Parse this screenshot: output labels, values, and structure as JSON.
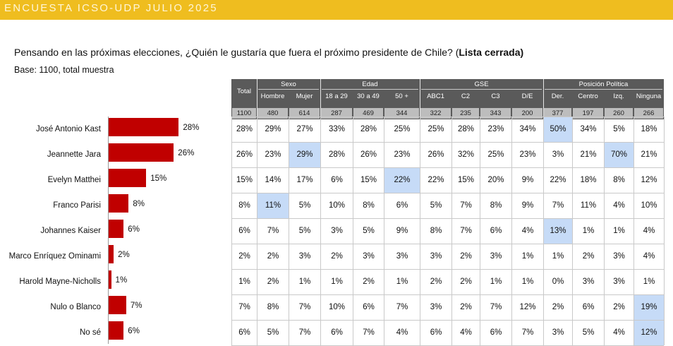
{
  "header": {
    "banner_title": "ENCUESTA ICSO-UDP JULIO 2025"
  },
  "question": {
    "text": "Pensando en las próximas elecciones, ¿Quién le gustaría que fuera el próximo presidente de Chile? (",
    "bold": "Lista cerrada)"
  },
  "base": "Base: 1100, total muestra",
  "colors": {
    "banner": "#efbd1f",
    "bar": "#c00000",
    "highlight": "#c6dbf7",
    "header_bg": "#5a5a5a"
  },
  "table": {
    "total_label": "Total",
    "groups": [
      "Sexo",
      "Edad",
      "GSE",
      "Posición Política"
    ],
    "columns": [
      "Hombre",
      "Mujer",
      "18 a  29",
      "30 a  49",
      "50 +",
      "ABC1",
      "C2",
      "C3",
      "D/E",
      "Der.",
      "Centro",
      "Izq.",
      "Ninguna"
    ],
    "n_values": [
      "1100",
      "480",
      "614",
      "287",
      "469",
      "344",
      "322",
      "235",
      "343",
      "200",
      "377",
      "197",
      "260",
      "266"
    ],
    "rows": [
      {
        "name": "José Antonio Kast",
        "cells": [
          "28%",
          "29%",
          "27%",
          "33%",
          "28%",
          "25%",
          "25%",
          "28%",
          "23%",
          "34%",
          "50%",
          "34%",
          "5%",
          "18%"
        ]
      },
      {
        "name": "Jeannette Jara",
        "cells": [
          "26%",
          "23%",
          "29%",
          "28%",
          "26%",
          "23%",
          "26%",
          "32%",
          "25%",
          "23%",
          "3%",
          "21%",
          "70%",
          "21%"
        ]
      },
      {
        "name": "Evelyn Matthei",
        "cells": [
          "15%",
          "14%",
          "17%",
          "6%",
          "15%",
          "22%",
          "22%",
          "15%",
          "20%",
          "9%",
          "22%",
          "18%",
          "8%",
          "12%"
        ]
      },
      {
        "name": "Franco Parisi",
        "cells": [
          "8%",
          "11%",
          "5%",
          "10%",
          "8%",
          "6%",
          "5%",
          "7%",
          "8%",
          "9%",
          "7%",
          "11%",
          "4%",
          "10%"
        ]
      },
      {
        "name": "Johannes Kaiser",
        "cells": [
          "6%",
          "7%",
          "5%",
          "3%",
          "5%",
          "9%",
          "8%",
          "7%",
          "6%",
          "4%",
          "13%",
          "1%",
          "1%",
          "4%"
        ]
      },
      {
        "name": "Marco Enríquez Ominami",
        "cells": [
          "2%",
          "2%",
          "3%",
          "2%",
          "3%",
          "3%",
          "3%",
          "2%",
          "3%",
          "1%",
          "1%",
          "2%",
          "3%",
          "4%"
        ]
      },
      {
        "name": "Harold Mayne-Nicholls",
        "cells": [
          "1%",
          "2%",
          "1%",
          "1%",
          "2%",
          "1%",
          "2%",
          "2%",
          "1%",
          "1%",
          "0%",
          "3%",
          "3%",
          "1%"
        ]
      },
      {
        "name": "Nulo o Blanco",
        "cells": [
          "7%",
          "8%",
          "7%",
          "10%",
          "6%",
          "7%",
          "3%",
          "2%",
          "7%",
          "12%",
          "2%",
          "6%",
          "2%",
          "19%"
        ]
      },
      {
        "name": "No sé",
        "cells": [
          "6%",
          "5%",
          "7%",
          "6%",
          "7%",
          "4%",
          "6%",
          "4%",
          "6%",
          "7%",
          "3%",
          "5%",
          "4%",
          "12%"
        ]
      }
    ],
    "highlights": [
      [
        0,
        10
      ],
      [
        1,
        2
      ],
      [
        1,
        12
      ],
      [
        2,
        5
      ],
      [
        3,
        1
      ],
      [
        4,
        10
      ],
      [
        7,
        13
      ],
      [
        8,
        13
      ]
    ]
  },
  "chart_data": {
    "type": "bar",
    "orientation": "horizontal",
    "categories": [
      "José Antonio Kast",
      "Jeannette Jara",
      "Evelyn Matthei",
      "Franco Parisi",
      "Johannes Kaiser",
      "Marco Enríquez Ominami",
      "Harold Mayne-Nicholls",
      "Nulo o Blanco",
      "No sé"
    ],
    "values": [
      28,
      26,
      15,
      8,
      6,
      2,
      1,
      7,
      6
    ],
    "data_labels": [
      "28%",
      "26%",
      "15%",
      "8%",
      "6%",
      "2%",
      "1%",
      "7%",
      "6%"
    ],
    "unit": "%",
    "title": "",
    "grid": false,
    "legend": "none"
  }
}
